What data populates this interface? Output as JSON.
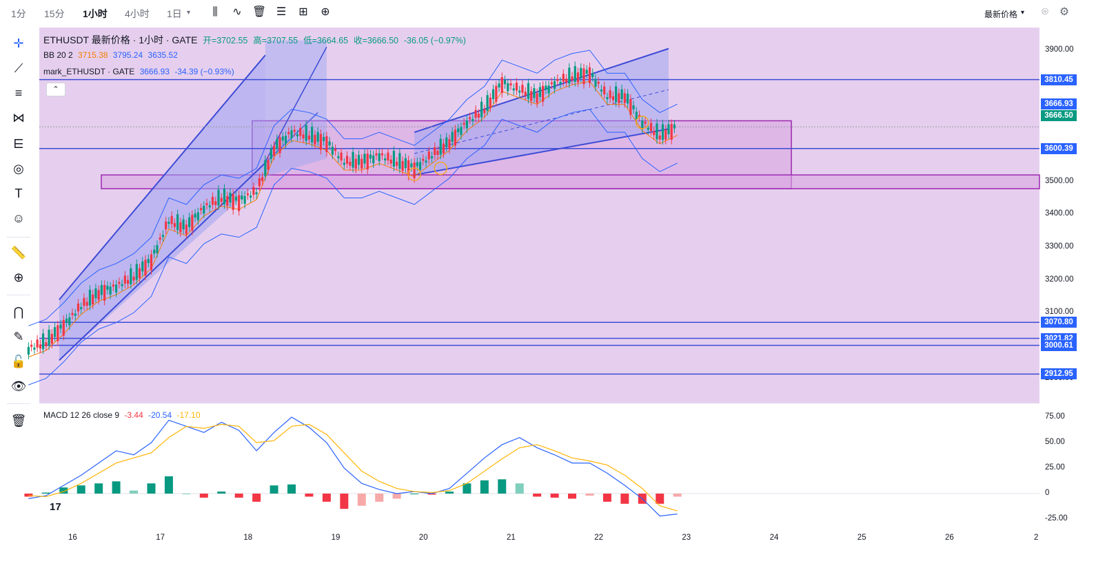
{
  "toolbar": {
    "intervals": [
      "1分",
      "15分",
      "1小时",
      "4小时",
      "1日"
    ],
    "active_interval": "1小时",
    "price_mode": "最新价格"
  },
  "legend": {
    "title": "ETHUSDT 最新价格 · 1小时 · GATE",
    "open_label": "开=3702.55",
    "high_label": "高=3707.55",
    "low_label": "低=3664.65",
    "close_label": "收=3666.50",
    "change_label": "-36.05 (−0.97%)",
    "bb_label": "BB 20 2",
    "bb_basis": "3715.38",
    "bb_upper": "3795.24",
    "bb_lower": "3635.52",
    "mark_label": "mark_ETHUSDT · GATE",
    "mark_value": "3666.93",
    "mark_change": "-34.39 (−0.93%)",
    "macd_label": "MACD 12 26 close 9",
    "macd_hist": "-3.44",
    "macd_line": "-20.54",
    "macd_signal": "-17.10"
  },
  "colors": {
    "up": "#089981",
    "down": "#f23645",
    "bb_line": "#2962ff",
    "bb_basis": "#f57c00",
    "hline": "#3c4bd6",
    "zone_fill": "#e6cfee",
    "box_border": "#9c27b0",
    "channel_fill": "#9aa3f2",
    "macd_line": "#2962ff",
    "signal_line": "#ffb300"
  },
  "chart_data": {
    "type": "line",
    "x_ticks": [
      "16",
      "17",
      "18",
      "19",
      "20",
      "21",
      "22",
      "23",
      "24",
      "25",
      "26",
      "2"
    ],
    "y_ticks": [
      "3900.00",
      "3800.00",
      "3700.00",
      "3600.00",
      "3500.00",
      "3400.00",
      "3300.00",
      "3200.00",
      "3100.00",
      "3000.00",
      "2900.00"
    ],
    "ylim": [
      2825,
      3975
    ],
    "price_levels": [
      "3810.45",
      "3600.39",
      "3070.80",
      "3021.82",
      "3000.61",
      "2912.95"
    ],
    "current_tags": [
      {
        "label": "3666.93",
        "color": "#2962ff"
      },
      {
        "label": "3666.50",
        "color": "#089981"
      }
    ],
    "series": [
      {
        "values_note": "",
        "x": [
          15.5,
          15.7,
          15.9,
          16.1,
          16.3,
          16.5,
          16.7,
          16.9,
          17.1,
          17.3,
          17.5,
          17.7,
          17.9,
          18.1,
          18.3,
          18.5,
          18.7,
          18.9,
          19.1,
          19.3,
          19.5,
          19.7,
          19.9,
          20.1,
          20.3,
          20.5,
          20.7,
          20.9,
          21.1,
          21.3,
          21.5,
          21.7,
          21.9,
          22.1,
          22.3,
          22.5,
          22.7,
          22.9
        ],
        "values": [
          2990,
          3010,
          3060,
          3120,
          3160,
          3180,
          3210,
          3260,
          3380,
          3360,
          3420,
          3450,
          3440,
          3470,
          3600,
          3650,
          3640,
          3620,
          3560,
          3560,
          3580,
          3560,
          3540,
          3580,
          3620,
          3680,
          3720,
          3800,
          3780,
          3760,
          3800,
          3820,
          3830,
          3760,
          3760,
          3680,
          3640,
          3666
        ]
      }
    ],
    "macd": {
      "y_ticks": [
        "75.00",
        "50.00",
        "25.00",
        "0",
        "-25.00"
      ],
      "ylim": [
        -30,
        80
      ],
      "x": [
        15.5,
        15.7,
        15.9,
        16.1,
        16.3,
        16.5,
        16.7,
        16.9,
        17.1,
        17.3,
        17.5,
        17.7,
        17.9,
        18.1,
        18.3,
        18.5,
        18.7,
        18.9,
        19.1,
        19.3,
        19.5,
        19.7,
        19.9,
        20.1,
        20.3,
        20.5,
        20.7,
        20.9,
        21.1,
        21.3,
        21.5,
        21.7,
        21.9,
        22.1,
        22.3,
        22.5,
        22.7,
        22.9
      ],
      "macd_line": [
        -5,
        -2,
        8,
        18,
        30,
        42,
        38,
        50,
        72,
        66,
        60,
        70,
        62,
        42,
        60,
        75,
        65,
        50,
        25,
        10,
        4,
        0,
        2,
        0,
        5,
        20,
        35,
        48,
        55,
        45,
        38,
        30,
        30,
        20,
        8,
        -5,
        -22,
        -20
      ],
      "signal_line": [
        -2,
        -3,
        2,
        10,
        20,
        30,
        35,
        40,
        55,
        66,
        64,
        68,
        66,
        50,
        52,
        66,
        68,
        58,
        40,
        22,
        12,
        5,
        2,
        1,
        3,
        10,
        22,
        34,
        45,
        48,
        42,
        35,
        32,
        28,
        18,
        5,
        -12,
        -17
      ],
      "histogram": [
        -3,
        1,
        6,
        8,
        10,
        12,
        3,
        10,
        17,
        0,
        -4,
        2,
        -4,
        -8,
        8,
        9,
        -3,
        -8,
        -15,
        -12,
        -8,
        -5,
        0,
        -1,
        2,
        10,
        13,
        14,
        10,
        -3,
        -4,
        -5,
        -2,
        -8,
        -10,
        -10,
        -10,
        -3
      ]
    }
  }
}
